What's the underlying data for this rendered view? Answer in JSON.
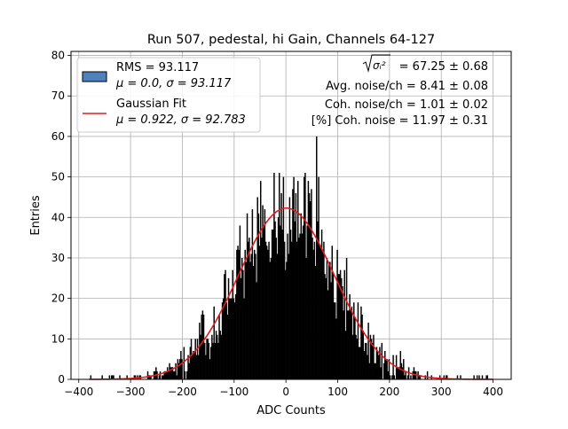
{
  "chart_data": {
    "type": "bar",
    "title": "Run 507, pedestal, hi Gain, Channels 64-127",
    "xlabel": "ADC Counts",
    "ylabel": "Entries",
    "xlim": [
      -415,
      435
    ],
    "ylim": [
      0,
      81
    ],
    "xticks": [
      -400,
      -300,
      -200,
      -100,
      0,
      100,
      200,
      300,
      400
    ],
    "xtick_labels": [
      "−400",
      "−300",
      "−200",
      "−100",
      "0",
      "100",
      "200",
      "300",
      "400"
    ],
    "yticks": [
      0,
      10,
      20,
      30,
      40,
      50,
      60,
      70,
      80
    ],
    "ytick_labels": [
      "0",
      "10",
      "20",
      "30",
      "40",
      "50",
      "60",
      "70",
      "80"
    ],
    "grid": true,
    "legend_position": "top-left",
    "legend": [
      {
        "line1": "RMS = 93.117",
        "line2": "μ = 0.0, σ = 93.117",
        "kind": "patch",
        "color": "#4f81bd"
      },
      {
        "line1": "Gaussian Fit",
        "line2": "μ = 0.922, σ = 92.783",
        "kind": "line",
        "color": "#e31a1c"
      }
    ],
    "annotations": {
      "sqrt_sigma_value": " = 67.25 ± 0.68",
      "sqrt_sigma_symbol": "σᵢ²",
      "avg_noise": "Avg. noise/ch = 8.41 ± 0.08",
      "coh_noise": "Coh. noise/ch = 1.01 ± 0.02",
      "pct_coh_noise": "[%] Coh. noise = 11.97 ± 0.31"
    },
    "series": [
      {
        "name": "Histogram",
        "kind": "histogram",
        "bin_width": 2,
        "x_range": [
          -380,
          400
        ],
        "color": "#000000",
        "peak_entries": 60,
        "approx_gaussian": {
          "amplitude": 42.3,
          "mu": 0.922,
          "sigma": 92.783
        }
      },
      {
        "name": "Gaussian Fit",
        "kind": "line",
        "color": "#e31a1c",
        "amplitude": 42.3,
        "mu": 0.922,
        "sigma": 92.783,
        "x_range": [
          -380,
          400
        ]
      }
    ]
  }
}
